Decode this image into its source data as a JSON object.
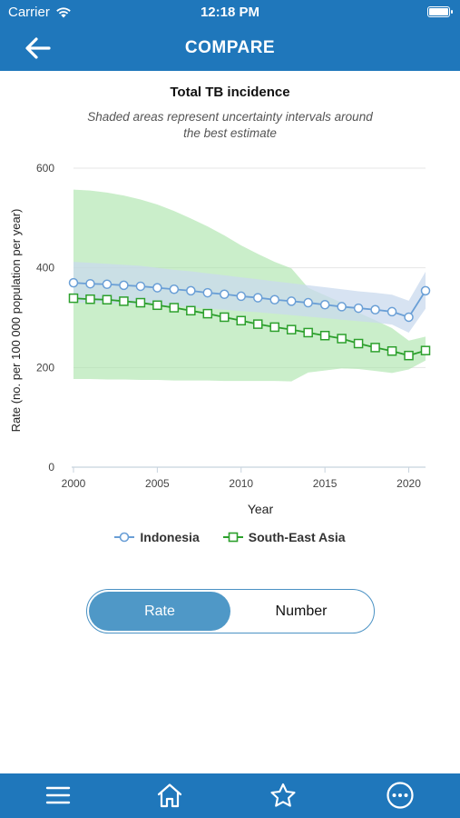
{
  "status_bar": {
    "carrier": "Carrier",
    "time": "12:18 PM"
  },
  "nav": {
    "title": "COMPARE"
  },
  "chart_data": {
    "type": "line",
    "title": "Total TB incidence",
    "subtitle": "Shaded areas represent uncertainty intervals around the best estimate",
    "xlabel": "Year",
    "ylabel": "Rate (no. per 100 000 population per year)",
    "xlim": [
      2000,
      2021
    ],
    "ylim": [
      0,
      600
    ],
    "x_ticks": [
      2000,
      2005,
      2010,
      2015,
      2020
    ],
    "y_ticks": [
      0,
      200,
      400,
      600
    ],
    "grid": true,
    "legend_position": "bottom",
    "x": [
      2000,
      2001,
      2002,
      2003,
      2004,
      2005,
      2006,
      2007,
      2008,
      2009,
      2010,
      2011,
      2012,
      2013,
      2014,
      2015,
      2016,
      2017,
      2018,
      2019,
      2020,
      2021
    ],
    "series": [
      {
        "name": "Indonesia",
        "color": "#6a9fd6",
        "band_color": "#c9d9ee",
        "marker": "circle",
        "values": [
          370,
          368,
          367,
          365,
          363,
          360,
          357,
          354,
          350,
          347,
          343,
          340,
          336,
          333,
          330,
          326,
          322,
          319,
          316,
          312,
          301,
          354
        ],
        "lower": [
          330,
          330,
          329,
          328,
          327,
          325,
          323,
          321,
          318,
          316,
          313,
          311,
          308,
          305,
          302,
          299,
          296,
          293,
          290,
          286,
          270,
          318
        ],
        "upper": [
          412,
          410,
          408,
          406,
          404,
          400,
          396,
          393,
          389,
          385,
          381,
          377,
          373,
          369,
          365,
          361,
          357,
          353,
          350,
          346,
          334,
          392
        ]
      },
      {
        "name": "South-East Asia",
        "color": "#2ca02c",
        "band_color": "#a6e3a6",
        "marker": "square",
        "values": [
          339,
          337,
          336,
          333,
          330,
          325,
          320,
          314,
          308,
          301,
          294,
          287,
          281,
          276,
          270,
          264,
          258,
          248,
          240,
          233,
          224,
          234
        ],
        "lower": [
          177,
          177,
          176,
          176,
          175,
          175,
          174,
          174,
          174,
          173,
          173,
          173,
          173,
          172,
          190,
          194,
          198,
          197,
          193,
          189,
          196,
          214
        ],
        "upper": [
          557,
          555,
          551,
          545,
          537,
          527,
          514,
          499,
          483,
          465,
          445,
          428,
          412,
          399,
          360,
          345,
          330,
          310,
          295,
          279,
          254,
          262
        ]
      }
    ]
  },
  "toggle": {
    "rate_label": "Rate",
    "number_label": "Number",
    "selected": "Rate"
  },
  "tabbar": {
    "items": [
      "menu-icon",
      "home-icon",
      "star-icon",
      "more-icon"
    ]
  }
}
